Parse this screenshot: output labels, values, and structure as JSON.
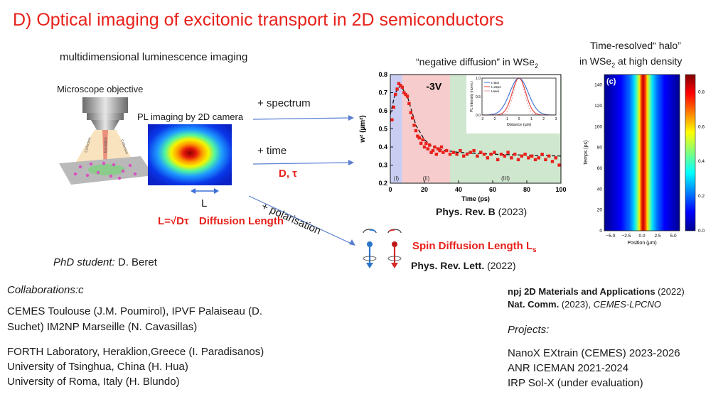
{
  "slide": {
    "title": "D) Optical imaging of excitonic transport in 2D semiconductors",
    "subtitle": "multidimensional luminescence imaging",
    "microscope_label": "Microscope objective",
    "pl_label": "PL imaging by 2D camera",
    "beam_labels": [
      "Collection",
      "Excitation",
      "Collection"
    ],
    "L_symbol": "L",
    "diffusion_formula": "L=√Dτ",
    "diffusion_label": "Diffusion Length",
    "arrow_spectrum": "+  spectrum",
    "arrow_time": "+  time",
    "d_tau": "D, τ",
    "arrow_polar": "+ polarisation",
    "spin_label": "Spin Diffusion Length L",
    "spin_sub": "s",
    "prl_journal": "Phys. Rev. Lett.",
    "prl_year": " (2022)",
    "phd_prefix": "PhD student:",
    "phd_name": " D. Beret",
    "collab_title": "Collaborations:c",
    "collab_lines": [
      "CEMES Toulouse (J.M. Poumirol), IPVF Palaiseau (D.",
      "Suchet) IM2NP Marseille  (N. Cavasillas)",
      "FORTH Laboratory, Heraklion,Greece (I. Paradisanos)",
      "University of Tsinghua, China (H. Hua)",
      "University of Roma, Italy (H. Blundo)"
    ],
    "pub1_journal": "npj 2D Materials and Applications",
    "pub1_year": " (2022)",
    "pub2_journal": "Nat. Comm.",
    "pub2_rest": " (2023), ",
    "pub2_lab": "CEMES-LPCNO",
    "projects_title": "Projects:",
    "projects": [
      "NanoX EXtrain (CEMES) 2023-2026",
      "ANR ICEMAN 2021-2024",
      "IRP Sol-X (under evaluation)"
    ]
  },
  "main_chart_header": {
    "title": "“negative diffusion” in WSe",
    "title_sub": "2",
    "reference": "Phys. Rev. B",
    "reference_year": " (2023)"
  },
  "halo_header": {
    "line1": "Time-resolved“ halo”",
    "line2_a": "in WSe",
    "line2_sub": "2",
    "line2_b": "  at high density"
  },
  "chart_data": [
    {
      "type": "scatter",
      "xlabel": "Time (ps)",
      "ylabel": "w² (µm²)",
      "xlim": [
        0,
        100
      ],
      "ylim": [
        0.2,
        0.8
      ],
      "xticks": [
        0,
        20,
        40,
        60,
        80,
        100
      ],
      "yticks": [
        0.2,
        0.3,
        0.4,
        0.5,
        0.6,
        0.7,
        0.8
      ],
      "annotation": "-3V",
      "regions": [
        {
          "label": "(I)",
          "from": 0,
          "to": 7,
          "color": "#c9cdf2"
        },
        {
          "label": "(II)",
          "from": 7,
          "to": 35,
          "color": "#f6cccc"
        },
        {
          "label": "(III)",
          "from": 35,
          "to": 100,
          "color": "#cfe6cf"
        }
      ],
      "points": [
        [
          1,
          0.55
        ],
        [
          2,
          0.62
        ],
        [
          3,
          0.69
        ],
        [
          4,
          0.72
        ],
        [
          5,
          0.75
        ],
        [
          6,
          0.74
        ],
        [
          7,
          0.73
        ],
        [
          8,
          0.7
        ],
        [
          9,
          0.69
        ],
        [
          10,
          0.68
        ],
        [
          11,
          0.64
        ],
        [
          12,
          0.59
        ],
        [
          13,
          0.56
        ],
        [
          14,
          0.52
        ],
        [
          15,
          0.49
        ],
        [
          16,
          0.46
        ],
        [
          17,
          0.45
        ],
        [
          18,
          0.42
        ],
        [
          19,
          0.44
        ],
        [
          20,
          0.4
        ],
        [
          21,
          0.42
        ],
        [
          22,
          0.39
        ],
        [
          23,
          0.41
        ],
        [
          24,
          0.37
        ],
        [
          25,
          0.38
        ],
        [
          26,
          0.4
        ],
        [
          27,
          0.36
        ],
        [
          28,
          0.39
        ],
        [
          29,
          0.38
        ],
        [
          30,
          0.4
        ],
        [
          31,
          0.37
        ],
        [
          33,
          0.38
        ],
        [
          35,
          0.36
        ],
        [
          37,
          0.37
        ],
        [
          39,
          0.36
        ],
        [
          41,
          0.38
        ],
        [
          43,
          0.35
        ],
        [
          45,
          0.36
        ],
        [
          47,
          0.37
        ],
        [
          49,
          0.38
        ],
        [
          51,
          0.35
        ],
        [
          53,
          0.37
        ],
        [
          55,
          0.36
        ],
        [
          57,
          0.34
        ],
        [
          59,
          0.36
        ],
        [
          61,
          0.37
        ],
        [
          63,
          0.33
        ],
        [
          65,
          0.36
        ],
        [
          67,
          0.35
        ],
        [
          69,
          0.37
        ],
        [
          71,
          0.34
        ],
        [
          73,
          0.36
        ],
        [
          75,
          0.33
        ],
        [
          77,
          0.35
        ],
        [
          79,
          0.36
        ],
        [
          81,
          0.34
        ],
        [
          83,
          0.35
        ],
        [
          85,
          0.33
        ],
        [
          87,
          0.34
        ],
        [
          89,
          0.36
        ],
        [
          91,
          0.33
        ],
        [
          93,
          0.35
        ],
        [
          95,
          0.32
        ],
        [
          97,
          0.34
        ],
        [
          99,
          0.3
        ]
      ],
      "fit": [
        [
          0,
          0.58
        ],
        [
          3,
          0.7
        ],
        [
          6,
          0.74
        ],
        [
          10,
          0.68
        ],
        [
          15,
          0.52
        ],
        [
          20,
          0.44
        ],
        [
          25,
          0.4
        ],
        [
          30,
          0.385
        ],
        [
          40,
          0.37
        ],
        [
          60,
          0.36
        ],
        [
          80,
          0.355
        ],
        [
          100,
          0.35
        ]
      ],
      "inset": {
        "xlabel": "Distance (µm)",
        "ylabel": "PL Intensity (norm.)",
        "xlim": [
          -3,
          3
        ],
        "ylim": [
          0,
          1
        ],
        "xticks": [
          -3,
          -2,
          -1,
          0,
          1,
          2,
          3
        ],
        "yticks": [
          0.0,
          0.5,
          1.0
        ],
        "legend": [
          "t=8ps",
          "t=22ps",
          "Laser"
        ],
        "legend_colors": [
          "#3b6fd6",
          "#e23a3a",
          "#e8a1a1"
        ],
        "widths": [
          0.75,
          0.55,
          0.45
        ]
      }
    },
    {
      "type": "heatmap",
      "label": "(c)",
      "xlabel": "Position (μm)",
      "ylabel": "Temps (ps)",
      "xlim": [
        -6,
        6
      ],
      "ylim": [
        0,
        150
      ],
      "xticks": [
        "−5.0",
        "−2.5",
        "0.0",
        "2.5",
        "5.0"
      ],
      "yticks": [
        0,
        20,
        40,
        60,
        80,
        100,
        120,
        140
      ],
      "colorbar": {
        "min": 0.0,
        "max": 0.9,
        "ticks": [
          "0.0",
          "0.2",
          "0.4",
          "0.6",
          "0.8"
        ]
      }
    }
  ]
}
